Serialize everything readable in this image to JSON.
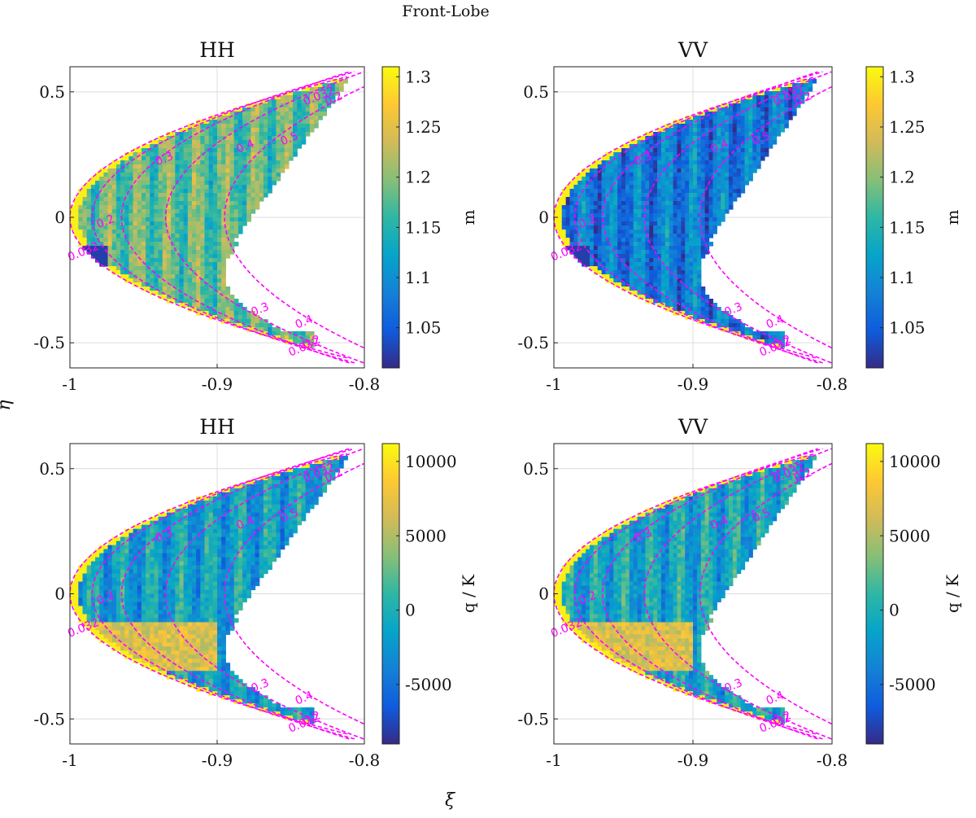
{
  "figure_title": "Front-Lobe",
  "xlabel": "ξ",
  "ylabel": "η",
  "colors": {
    "contour": "#ff00ff",
    "grid": "#dcdcdc",
    "axis": "#222222",
    "fill": "#ffffff"
  },
  "chart_data": [
    {
      "type": "heatmap",
      "title": "HH",
      "xlim": [
        -1,
        -0.8
      ],
      "ylim": [
        -0.6,
        0.6
      ],
      "xticks": [
        -1,
        -0.9,
        -0.8
      ],
      "xtick_labels": [
        "-1",
        "-0.9",
        "-0.8"
      ],
      "yticks": [
        -0.5,
        0,
        0.5
      ],
      "ytick_labels": [
        "-0.5",
        "0",
        "0.5"
      ],
      "colorbar": {
        "label": "m",
        "range": [
          1.01,
          1.31
        ],
        "ticks": [
          1.05,
          1.1,
          1.15,
          1.2,
          1.25,
          1.3
        ],
        "tick_labels": [
          "1.05",
          "1.1",
          "1.15",
          "1.2",
          "1.25",
          "1.3"
        ]
      },
      "contour_labels": [
        "0.032",
        "0.2",
        "0.3",
        "0.4",
        "0.5"
      ],
      "field_mean": 1.18
    },
    {
      "type": "heatmap",
      "title": "VV",
      "xlim": [
        -1,
        -0.8
      ],
      "ylim": [
        -0.6,
        0.6
      ],
      "xticks": [
        -1,
        -0.9,
        -0.8
      ],
      "xtick_labels": [
        "-1",
        "-0.9",
        "-0.8"
      ],
      "yticks": [
        -0.5,
        0,
        0.5
      ],
      "ytick_labels": [
        "-0.5",
        "0",
        "0.5"
      ],
      "colorbar": {
        "label": "m",
        "range": [
          1.01,
          1.31
        ],
        "ticks": [
          1.05,
          1.1,
          1.15,
          1.2,
          1.25,
          1.3
        ],
        "tick_labels": [
          "1.05",
          "1.1",
          "1.15",
          "1.2",
          "1.25",
          "1.3"
        ]
      },
      "contour_labels": [
        "0.032",
        "0.2",
        "0.3",
        "0.4",
        "0.5"
      ],
      "field_mean": 1.08
    },
    {
      "type": "heatmap",
      "title": "HH",
      "xlim": [
        -1,
        -0.8
      ],
      "ylim": [
        -0.6,
        0.6
      ],
      "xticks": [
        -1,
        -0.9,
        -0.8
      ],
      "xtick_labels": [
        "-1",
        "-0.9",
        "-0.8"
      ],
      "yticks": [
        -0.5,
        0,
        0.5
      ],
      "ytick_labels": [
        "-0.5",
        "0",
        "0.5"
      ],
      "colorbar": {
        "label": "q / K",
        "range": [
          -9000,
          11200
        ],
        "ticks": [
          -5000,
          0,
          5000,
          10000
        ],
        "tick_labels": [
          "-5000",
          "0",
          "5000",
          "10000"
        ]
      },
      "contour_labels": [
        "0.032",
        "0.2",
        "0.3",
        "0.4",
        "0.5"
      ],
      "field_mean": -1500
    },
    {
      "type": "heatmap",
      "title": "VV",
      "xlim": [
        -1,
        -0.8
      ],
      "ylim": [
        -0.6,
        0.6
      ],
      "xticks": [
        -1,
        -0.9,
        -0.8
      ],
      "xtick_labels": [
        "-1",
        "-0.9",
        "-0.8"
      ],
      "yticks": [
        -0.5,
        0,
        0.5
      ],
      "ytick_labels": [
        "-0.5",
        "0",
        "0.5"
      ],
      "colorbar": {
        "label": "q / K",
        "range": [
          -9000,
          11200
        ],
        "ticks": [
          -5000,
          0,
          5000,
          10000
        ],
        "tick_labels": [
          "-5000",
          "0",
          "5000",
          "10000"
        ]
      },
      "contour_labels": [
        "0.032",
        "0.2",
        "0.3",
        "0.4",
        "0.5"
      ],
      "field_mean": -1000
    }
  ]
}
